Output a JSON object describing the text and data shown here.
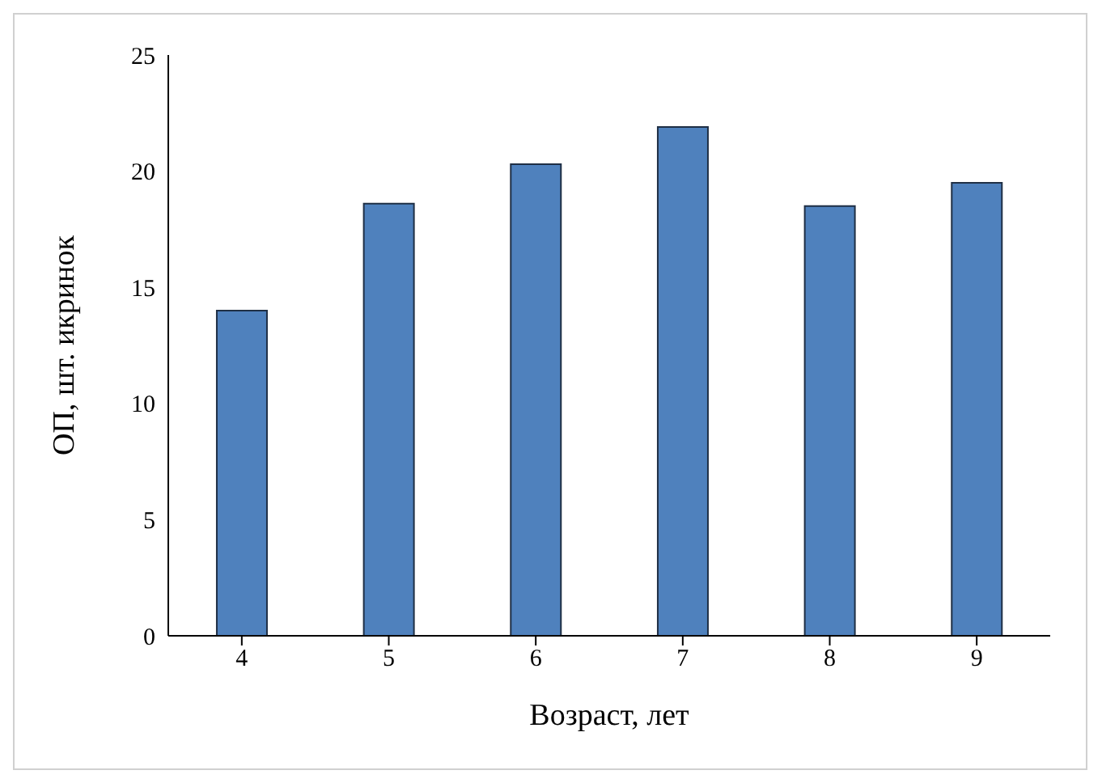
{
  "chart_data": {
    "type": "bar",
    "xlabel": "Возраст, лет",
    "ylabel": "ОП, шт. икринок",
    "categories": [
      "4",
      "5",
      "6",
      "7",
      "8",
      "9"
    ],
    "values": [
      14.0,
      18.6,
      20.3,
      21.9,
      18.5,
      19.5
    ],
    "color": "#4f81bd",
    "ylim": [
      0,
      25
    ],
    "yticks": [
      0,
      5,
      10,
      15,
      20,
      25
    ],
    "grid": false,
    "legend": false
  }
}
